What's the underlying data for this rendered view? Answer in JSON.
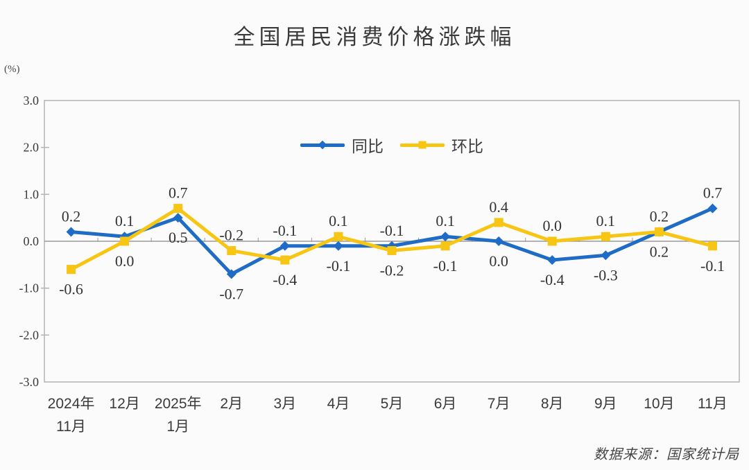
{
  "chart_data": {
    "type": "line",
    "title": "全国居民消费价格涨跌幅",
    "ylabel": "(%)",
    "xlabel": "",
    "source": "数据来源：国家统计局",
    "ylim": [
      -3.0,
      3.0
    ],
    "ytick_labels": [
      "3.0",
      "2.0",
      "1.0",
      "0.0",
      "-1.0",
      "-2.0",
      "-3.0"
    ],
    "grid": false,
    "legend_position": "top-center",
    "categories": [
      [
        "2024年",
        "11月"
      ],
      [
        "12月"
      ],
      [
        "2025年",
        "1月"
      ],
      [
        "2月"
      ],
      [
        "3月"
      ],
      [
        "4月"
      ],
      [
        "5月"
      ],
      [
        "6月"
      ],
      [
        "7月"
      ],
      [
        "8月"
      ],
      [
        "9月"
      ],
      [
        "10月"
      ],
      [
        "11月"
      ]
    ],
    "series": [
      {
        "name": "同比",
        "marker": "diamond",
        "color": "#1E6CC5",
        "values": [
          0.2,
          0.1,
          0.5,
          -0.7,
          -0.1,
          -0.1,
          -0.1,
          0.1,
          0.0,
          -0.4,
          -0.3,
          0.2,
          0.7
        ]
      },
      {
        "name": "环比",
        "marker": "square",
        "color": "#F7C513",
        "values": [
          -0.6,
          0.0,
          0.7,
          -0.2,
          -0.4,
          0.1,
          -0.2,
          -0.1,
          0.4,
          0.0,
          0.1,
          0.2,
          -0.1
        ]
      }
    ]
  }
}
